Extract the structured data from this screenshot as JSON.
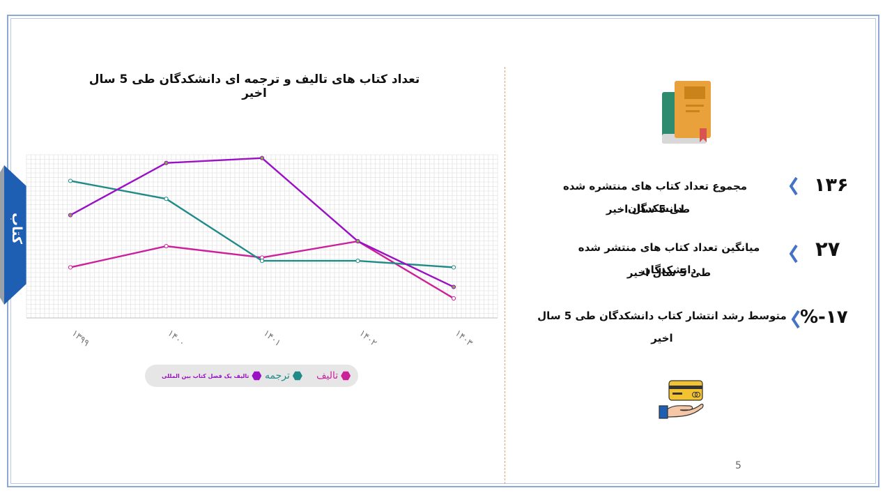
{
  "page": {
    "number": "5"
  },
  "side_tab": {
    "label": "کتاب",
    "color": "#1e5fb3"
  },
  "chart_data": {
    "type": "line",
    "title": "تعداد کتاب های تالیف و ترجمه ای  دانشکدگان طی 5 سال اخیر",
    "categories": [
      "۱۳۹۹",
      "۱۴۰۰",
      "۱۴۰۱",
      "۱۴۰۲",
      "۱۴۰۳"
    ],
    "ylim": [
      0,
      10
    ],
    "grid": true,
    "legend_position": "bottom",
    "series": [
      {
        "name": "تالیف",
        "color": "#cc1f9a",
        "values": [
          3.1,
          4.4,
          3.7,
          4.7,
          1.2
        ]
      },
      {
        "name": "ترجمه",
        "color": "#1f8a88",
        "values": [
          8.4,
          7.3,
          3.5,
          3.5,
          3.1
        ]
      },
      {
        "name": "تالیف یک فصل کتاب بین المللی",
        "color": "#9a10c4",
        "values": [
          6.3,
          9.5,
          9.8,
          4.7,
          1.9
        ]
      }
    ]
  },
  "stats": [
    {
      "value": "۱۳۶",
      "line1": "مجموع  تعداد  کتاب های منتشره شده دانشکدگان",
      "line2": "طی 5 سال اخیر"
    },
    {
      "value": "۲۷",
      "line1": "میانگین تعداد کتاب های منتشر شده دانشکدگان",
      "line2": "طی 5 سال  اخیر"
    },
    {
      "value": "%-۱۷",
      "line1": "متوسط رشد انتشار کتاب  دانشکدگان  طی 5 سال  اخیر",
      "line2": ""
    }
  ],
  "colors": {
    "chevron": "#4472c4",
    "frame": "#8ea6d6",
    "divider": "#e8a070"
  },
  "icons": {
    "top": "book-icon",
    "bottom": "hand-holding-card-icon"
  }
}
